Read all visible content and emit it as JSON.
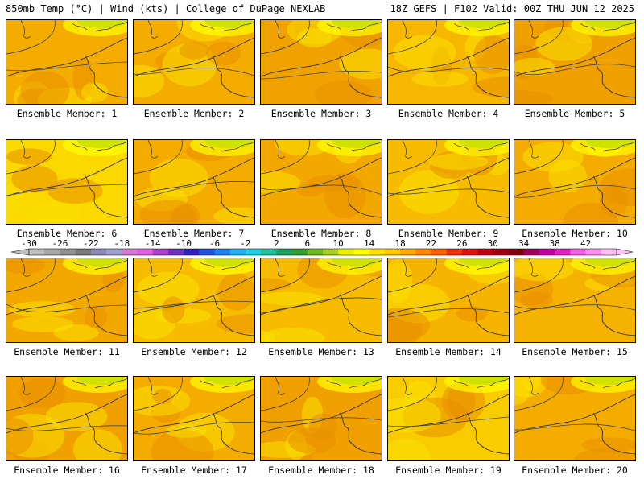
{
  "header": {
    "left": "850mb Temp (°C) | Wind (kts) | College of DuPage NEXLAB",
    "right": "18Z GEFS | F102 Valid: 00Z THU JUN 12 2025"
  },
  "members": [
    {
      "label": "Ensemble Member: 1",
      "base": "#f4ac00"
    },
    {
      "label": "Ensemble Member: 2",
      "base": "#f4ac00"
    },
    {
      "label": "Ensemble Member: 3",
      "base": "#f0a200"
    },
    {
      "label": "Ensemble Member: 4",
      "base": "#f7b600"
    },
    {
      "label": "Ensemble Member: 5",
      "base": "#f0a000"
    },
    {
      "label": "Ensemble Member: 6",
      "base": "#fbd800"
    },
    {
      "label": "Ensemble Member: 7",
      "base": "#f4ac00"
    },
    {
      "label": "Ensemble Member: 8",
      "base": "#f3a800"
    },
    {
      "label": "Ensemble Member: 9",
      "base": "#f7bc00"
    },
    {
      "label": "Ensemble Member: 10",
      "base": "#f4ac00"
    },
    {
      "label": "Ensemble Member: 11",
      "base": "#f3a800"
    },
    {
      "label": "Ensemble Member: 12",
      "base": "#f7bc00"
    },
    {
      "label": "Ensemble Member: 13",
      "base": "#f7bc00"
    },
    {
      "label": "Ensemble Member: 14",
      "base": "#f6b400"
    },
    {
      "label": "Ensemble Member: 15",
      "base": "#f6b200"
    },
    {
      "label": "Ensemble Member: 16",
      "base": "#f0a000"
    },
    {
      "label": "Ensemble Member: 17",
      "base": "#f4ac00"
    },
    {
      "label": "Ensemble Member: 18",
      "base": "#f0a000"
    },
    {
      "label": "Ensemble Member: 19",
      "base": "#f9cc00"
    },
    {
      "label": "Ensemble Member: 20",
      "base": "#f4ac00"
    }
  ],
  "colorbar": {
    "labels": [
      "-30",
      "-26",
      "-22",
      "-18",
      "-14",
      "-10",
      "-6",
      "-2",
      "2",
      "6",
      "10",
      "14",
      "18",
      "22",
      "26",
      "30",
      "34",
      "38",
      "42"
    ],
    "colors": [
      "#bfbfbf",
      "#a8a8a8",
      "#909090",
      "#7a7a7a",
      "#8a8ab4",
      "#a0a0d0",
      "#d27ad6",
      "#e060e0",
      "#b040d0",
      "#7030c0",
      "#3020c0",
      "#2050e0",
      "#2080f0",
      "#20b0f0",
      "#20d0e0",
      "#20c0a0",
      "#20a060",
      "#30a030",
      "#70b820",
      "#a8d020",
      "#e8f000",
      "#ffff00",
      "#ffe000",
      "#ffc800",
      "#ffa800",
      "#ff8800",
      "#ff6000",
      "#f03010",
      "#e01010",
      "#c00010",
      "#a00010",
      "#800010",
      "#a00060",
      "#c000a0",
      "#e020c0",
      "#f060e0",
      "#ff90f0",
      "#ffc0f8"
    ]
  },
  "palette": {
    "yellow": "#fbe000",
    "lightyellow": "#ffff00",
    "green": "#c8e000",
    "deeporange": "#e98f00"
  }
}
